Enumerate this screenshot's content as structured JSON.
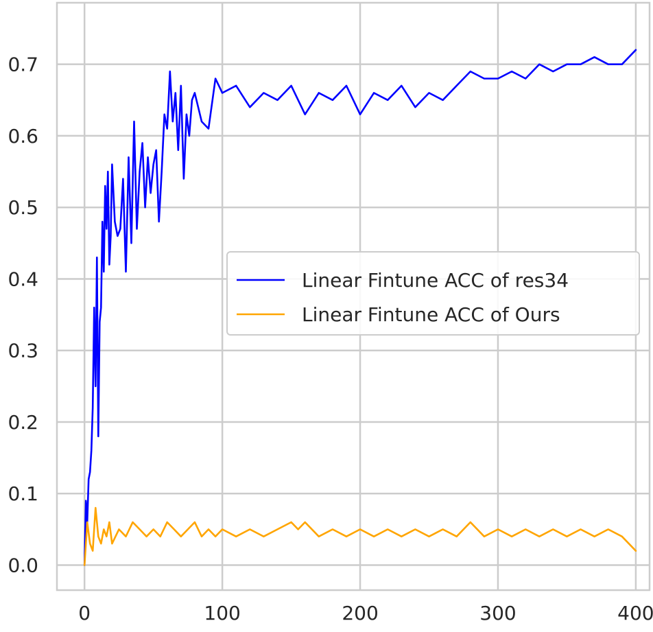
{
  "chart_data": {
    "type": "line",
    "title": "",
    "xlabel": "",
    "ylabel": "",
    "xlim": [
      -20,
      410
    ],
    "ylim": [
      -0.035,
      0.786
    ],
    "xticks": [
      0,
      100,
      200,
      300,
      400
    ],
    "xtick_labels": [
      "0",
      "100",
      "200",
      "300",
      "400"
    ],
    "yticks": [
      0.0,
      0.1,
      0.2,
      0.3,
      0.4,
      0.5,
      0.6,
      0.7
    ],
    "ytick_labels": [
      "0.0",
      "0.1",
      "0.2",
      "0.3",
      "0.4",
      "0.5",
      "0.6",
      "0.7"
    ],
    "grid": true,
    "legend_position": "center-right",
    "series": [
      {
        "name": "Linear Fintune ACC of res34",
        "color": "#0000ff",
        "x": [
          0,
          1,
          2,
          3,
          4,
          5,
          6,
          7,
          8,
          9,
          10,
          11,
          12,
          13,
          14,
          15,
          16,
          17,
          18,
          19,
          20,
          22,
          24,
          26,
          28,
          30,
          32,
          34,
          36,
          38,
          40,
          42,
          44,
          46,
          48,
          50,
          52,
          54,
          56,
          58,
          60,
          62,
          64,
          66,
          68,
          70,
          72,
          74,
          76,
          78,
          80,
          85,
          90,
          95,
          100,
          110,
          120,
          130,
          140,
          150,
          160,
          170,
          180,
          190,
          200,
          210,
          220,
          230,
          240,
          250,
          260,
          270,
          280,
          290,
          300,
          310,
          320,
          330,
          340,
          350,
          360,
          370,
          380,
          390,
          395,
          400
        ],
        "y": [
          0.0,
          0.09,
          0.06,
          0.12,
          0.13,
          0.16,
          0.22,
          0.36,
          0.25,
          0.43,
          0.18,
          0.34,
          0.36,
          0.48,
          0.41,
          0.53,
          0.47,
          0.55,
          0.42,
          0.46,
          0.56,
          0.48,
          0.46,
          0.47,
          0.54,
          0.41,
          0.57,
          0.45,
          0.62,
          0.47,
          0.55,
          0.59,
          0.5,
          0.57,
          0.52,
          0.56,
          0.58,
          0.48,
          0.55,
          0.63,
          0.61,
          0.69,
          0.62,
          0.66,
          0.58,
          0.67,
          0.54,
          0.63,
          0.6,
          0.65,
          0.66,
          0.62,
          0.61,
          0.68,
          0.66,
          0.67,
          0.64,
          0.66,
          0.65,
          0.67,
          0.63,
          0.66,
          0.65,
          0.67,
          0.63,
          0.66,
          0.65,
          0.67,
          0.64,
          0.66,
          0.65,
          0.67,
          0.69,
          0.68,
          0.68,
          0.69,
          0.68,
          0.7,
          0.69,
          0.7,
          0.7,
          0.71,
          0.7,
          0.7,
          0.71,
          0.72
        ]
      },
      {
        "name": "Linear Fintune ACC of Ours",
        "color": "#ffa500",
        "x": [
          0,
          2,
          4,
          6,
          8,
          10,
          12,
          14,
          16,
          18,
          20,
          25,
          30,
          35,
          40,
          45,
          50,
          55,
          60,
          65,
          70,
          75,
          80,
          85,
          90,
          95,
          100,
          110,
          120,
          130,
          140,
          150,
          155,
          160,
          170,
          180,
          190,
          200,
          210,
          220,
          230,
          240,
          250,
          260,
          270,
          280,
          290,
          300,
          310,
          320,
          330,
          340,
          350,
          360,
          370,
          380,
          390,
          400
        ],
        "y": [
          0.0,
          0.06,
          0.03,
          0.02,
          0.08,
          0.04,
          0.03,
          0.05,
          0.04,
          0.06,
          0.03,
          0.05,
          0.04,
          0.06,
          0.05,
          0.04,
          0.05,
          0.04,
          0.06,
          0.05,
          0.04,
          0.05,
          0.06,
          0.04,
          0.05,
          0.04,
          0.05,
          0.04,
          0.05,
          0.04,
          0.05,
          0.06,
          0.05,
          0.06,
          0.04,
          0.05,
          0.04,
          0.05,
          0.04,
          0.05,
          0.04,
          0.05,
          0.04,
          0.05,
          0.04,
          0.06,
          0.04,
          0.05,
          0.04,
          0.05,
          0.04,
          0.05,
          0.04,
          0.05,
          0.04,
          0.05,
          0.04,
          0.02
        ]
      }
    ]
  }
}
